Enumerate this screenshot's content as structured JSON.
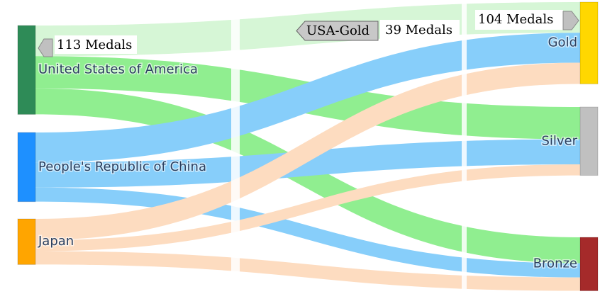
{
  "chart_data": {
    "type": "sankey",
    "nodes": [
      {
        "label": "United States of America",
        "color": "#2e8b57"
      },
      {
        "label": "People's Republic of China",
        "color": "#1e90ff"
      },
      {
        "label": "Japan",
        "color": "#ffa500"
      },
      {
        "label": "Gold",
        "color": "#ffd700"
      },
      {
        "label": "Silver",
        "color": "#c0c0c0"
      },
      {
        "label": "Bronze",
        "color": "#a52a2a"
      }
    ],
    "links": [
      {
        "source": 0,
        "target": 3,
        "value": 39,
        "color": "#d6f6d6"
      },
      {
        "source": 0,
        "target": 4,
        "value": 41,
        "color": "#90ee90"
      },
      {
        "source": 0,
        "target": 5,
        "value": 33,
        "color": "#90ee90"
      },
      {
        "source": 1,
        "target": 3,
        "value": 38,
        "color": "#87cefa"
      },
      {
        "source": 1,
        "target": 4,
        "value": 32,
        "color": "#87cefa"
      },
      {
        "source": 1,
        "target": 5,
        "value": 18,
        "color": "#87cefa"
      },
      {
        "source": 2,
        "target": 3,
        "value": 27,
        "color": "#fddcc0"
      },
      {
        "source": 2,
        "target": 4,
        "value": 14,
        "color": "#fddcc0"
      },
      {
        "source": 2,
        "target": 5,
        "value": 17,
        "color": "#fddcc0"
      }
    ],
    "hover_labels": [
      {
        "text": "113 Medals"
      },
      {
        "name": "USA-Gold",
        "text": "39 Medals"
      },
      {
        "text": "104 Medals"
      }
    ]
  }
}
